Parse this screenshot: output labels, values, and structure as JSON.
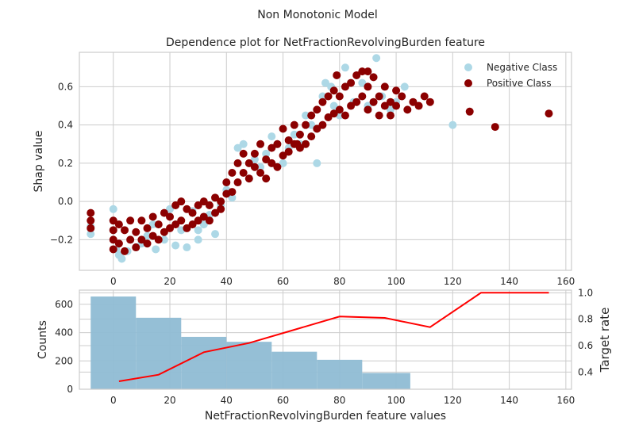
{
  "figure": {
    "suptitle": "Non Monotonic Model"
  },
  "chart_data": [
    {
      "type": "scatter",
      "title": "Dependence plot for NetFractionRevolvingBurden feature",
      "xlabel": "",
      "ylabel": "Shap value",
      "xlim": [
        -12,
        162
      ],
      "ylim": [
        -0.36,
        0.78
      ],
      "xticks": [
        0,
        20,
        40,
        60,
        80,
        100,
        120,
        140,
        160
      ],
      "yticks": [
        -0.2,
        0.0,
        0.2,
        0.4,
        0.6
      ],
      "ytick_labels": [
        "−0.2",
        "0.0",
        "0.2",
        "0.4",
        "0.6"
      ],
      "grid": true,
      "legend_position": "top-right",
      "series": [
        {
          "name": "Negative Class",
          "color": "#add8e6",
          "points": [
            [
              -8,
              -0.13
            ],
            [
              -8,
              -0.17
            ],
            [
              0,
              -0.04
            ],
            [
              0,
              -0.1
            ],
            [
              0,
              -0.15
            ],
            [
              0,
              -0.2
            ],
            [
              1,
              -0.25
            ],
            [
              2,
              -0.28
            ],
            [
              3,
              -0.3
            ],
            [
              5,
              -0.26
            ],
            [
              6,
              -0.2
            ],
            [
              8,
              -0.24
            ],
            [
              10,
              -0.22
            ],
            [
              12,
              -0.18
            ],
            [
              14,
              -0.12
            ],
            [
              15,
              -0.25
            ],
            [
              18,
              -0.2
            ],
            [
              20,
              -0.04
            ],
            [
              22,
              -0.23
            ],
            [
              24,
              -0.15
            ],
            [
              26,
              -0.24
            ],
            [
              28,
              -0.05
            ],
            [
              30,
              -0.2
            ],
            [
              32,
              -0.12
            ],
            [
              34,
              -0.07
            ],
            [
              36,
              -0.17
            ],
            [
              38,
              -0.02
            ],
            [
              40,
              0.06
            ],
            [
              42,
              0.02
            ],
            [
              44,
              0.28
            ],
            [
              46,
              0.3
            ],
            [
              48,
              0.12
            ],
            [
              50,
              0.22
            ],
            [
              52,
              0.18
            ],
            [
              54,
              0.25
            ],
            [
              56,
              0.34
            ],
            [
              58,
              0.3
            ],
            [
              60,
              0.2
            ],
            [
              62,
              0.28
            ],
            [
              64,
              0.35
            ],
            [
              66,
              0.3
            ],
            [
              68,
              0.45
            ],
            [
              70,
              0.4
            ],
            [
              72,
              0.2
            ],
            [
              74,
              0.55
            ],
            [
              75,
              0.62
            ],
            [
              77,
              0.6
            ],
            [
              78,
              0.5
            ],
            [
              80,
              0.45
            ],
            [
              82,
              0.7
            ],
            [
              85,
              0.52
            ],
            [
              88,
              0.62
            ],
            [
              90,
              0.5
            ],
            [
              93,
              0.75
            ],
            [
              95,
              0.55
            ],
            [
              98,
              0.48
            ],
            [
              100,
              0.52
            ],
            [
              103,
              0.6
            ],
            [
              120,
              0.4
            ],
            [
              30,
              -0.15
            ]
          ]
        },
        {
          "name": "Positive Class",
          "color": "#8b0000",
          "points": [
            [
              -8,
              -0.06
            ],
            [
              -8,
              -0.1
            ],
            [
              -8,
              -0.14
            ],
            [
              0,
              -0.1
            ],
            [
              0,
              -0.15
            ],
            [
              0,
              -0.2
            ],
            [
              0,
              -0.25
            ],
            [
              2,
              -0.12
            ],
            [
              2,
              -0.22
            ],
            [
              4,
              -0.15
            ],
            [
              4,
              -0.26
            ],
            [
              6,
              -0.1
            ],
            [
              6,
              -0.2
            ],
            [
              8,
              -0.16
            ],
            [
              8,
              -0.24
            ],
            [
              10,
              -0.1
            ],
            [
              10,
              -0.2
            ],
            [
              12,
              -0.14
            ],
            [
              12,
              -0.22
            ],
            [
              14,
              -0.08
            ],
            [
              14,
              -0.18
            ],
            [
              16,
              -0.12
            ],
            [
              16,
              -0.2
            ],
            [
              18,
              -0.06
            ],
            [
              18,
              -0.16
            ],
            [
              20,
              -0.08
            ],
            [
              20,
              -0.14
            ],
            [
              22,
              -0.02
            ],
            [
              22,
              -0.12
            ],
            [
              24,
              0.0
            ],
            [
              24,
              -0.1
            ],
            [
              26,
              -0.04
            ],
            [
              26,
              -0.14
            ],
            [
              28,
              -0.06
            ],
            [
              28,
              -0.12
            ],
            [
              30,
              -0.02
            ],
            [
              30,
              -0.1
            ],
            [
              32,
              0.0
            ],
            [
              32,
              -0.08
            ],
            [
              34,
              -0.02
            ],
            [
              34,
              -0.1
            ],
            [
              36,
              0.02
            ],
            [
              36,
              -0.06
            ],
            [
              38,
              0.0
            ],
            [
              38,
              -0.04
            ],
            [
              40,
              0.04
            ],
            [
              40,
              0.1
            ],
            [
              42,
              0.15
            ],
            [
              42,
              0.05
            ],
            [
              44,
              0.2
            ],
            [
              44,
              0.1
            ],
            [
              46,
              0.25
            ],
            [
              46,
              0.15
            ],
            [
              48,
              0.2
            ],
            [
              48,
              0.12
            ],
            [
              50,
              0.25
            ],
            [
              50,
              0.18
            ],
            [
              52,
              0.3
            ],
            [
              52,
              0.15
            ],
            [
              54,
              0.22
            ],
            [
              54,
              0.12
            ],
            [
              56,
              0.28
            ],
            [
              56,
              0.2
            ],
            [
              58,
              0.3
            ],
            [
              58,
              0.18
            ],
            [
              60,
              0.38
            ],
            [
              60,
              0.24
            ],
            [
              62,
              0.32
            ],
            [
              62,
              0.26
            ],
            [
              64,
              0.4
            ],
            [
              64,
              0.3
            ],
            [
              66,
              0.35
            ],
            [
              66,
              0.28
            ],
            [
              68,
              0.4
            ],
            [
              68,
              0.3
            ],
            [
              70,
              0.45
            ],
            [
              70,
              0.34
            ],
            [
              72,
              0.48
            ],
            [
              72,
              0.38
            ],
            [
              74,
              0.52
            ],
            [
              74,
              0.4
            ],
            [
              76,
              0.55
            ],
            [
              76,
              0.44
            ],
            [
              78,
              0.58
            ],
            [
              78,
              0.46
            ],
            [
              80,
              0.55
            ],
            [
              80,
              0.48
            ],
            [
              82,
              0.6
            ],
            [
              82,
              0.45
            ],
            [
              84,
              0.62
            ],
            [
              84,
              0.5
            ],
            [
              86,
              0.66
            ],
            [
              86,
              0.52
            ],
            [
              88,
              0.68
            ],
            [
              88,
              0.55
            ],
            [
              90,
              0.6
            ],
            [
              90,
              0.48
            ],
            [
              92,
              0.65
            ],
            [
              92,
              0.52
            ],
            [
              94,
              0.55
            ],
            [
              94,
              0.45
            ],
            [
              96,
              0.6
            ],
            [
              96,
              0.5
            ],
            [
              98,
              0.52
            ],
            [
              98,
              0.45
            ],
            [
              100,
              0.58
            ],
            [
              100,
              0.5
            ],
            [
              102,
              0.55
            ],
            [
              104,
              0.48
            ],
            [
              106,
              0.52
            ],
            [
              108,
              0.5
            ],
            [
              110,
              0.55
            ],
            [
              112,
              0.52
            ],
            [
              126,
              0.47
            ],
            [
              135,
              0.39
            ],
            [
              154,
              0.46
            ],
            [
              79,
              0.66
            ],
            [
              90,
              0.68
            ],
            [
              65,
              0.3
            ]
          ]
        }
      ]
    },
    {
      "type": "bar+line",
      "title": "",
      "xlabel": "NetFractionRevolvingBurden feature values",
      "ylabel": "Counts",
      "y2label": "Target rate",
      "y2label_color": "#ff0000",
      "xlim": [
        -12,
        162
      ],
      "ylim": [
        0,
        700
      ],
      "y2lim": [
        0.27,
        1.02
      ],
      "xticks": [
        0,
        20,
        40,
        60,
        80,
        100,
        120,
        140,
        160
      ],
      "yticks": [
        0,
        200,
        400,
        600
      ],
      "y2ticks": [
        0.4,
        0.6,
        0.8,
        1.0
      ],
      "grid": true,
      "histogram": {
        "color": "#8fbcd4",
        "bins": [
          {
            "x0": -8,
            "x1": 8,
            "count": 655
          },
          {
            "x0": 8,
            "x1": 24,
            "count": 505
          },
          {
            "x0": 24,
            "x1": 40,
            "count": 370
          },
          {
            "x0": 40,
            "x1": 56,
            "count": 335
          },
          {
            "x0": 56,
            "x1": 72,
            "count": 265
          },
          {
            "x0": 72,
            "x1": 88,
            "count": 208
          },
          {
            "x0": 88,
            "x1": 105,
            "count": 115
          }
        ]
      },
      "target_rate": {
        "color": "#ff0000",
        "x": [
          2,
          16,
          32,
          48,
          64,
          80,
          96,
          112,
          130,
          154
        ],
        "y": [
          0.33,
          0.38,
          0.55,
          0.62,
          0.72,
          0.82,
          0.81,
          0.74,
          1.0,
          1.0
        ]
      }
    }
  ]
}
